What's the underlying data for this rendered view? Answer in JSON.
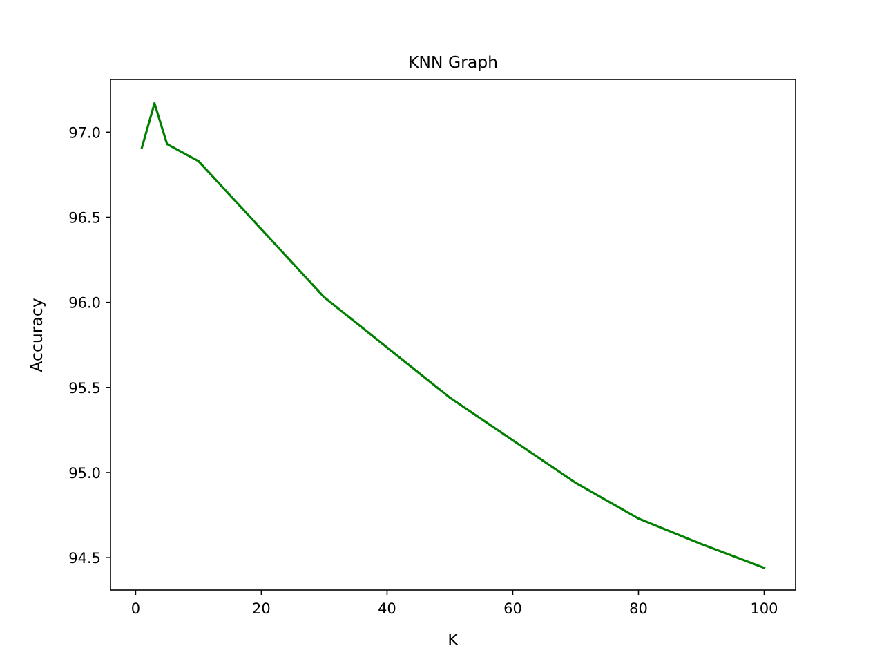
{
  "chart_data": {
    "type": "line",
    "title": "KNN Graph",
    "xlabel": "K",
    "ylabel": "Accuracy",
    "xlim": [
      -4,
      105
    ],
    "ylim": [
      94.31,
      97.31
    ],
    "grid": false,
    "legend": "none",
    "x_ticks": [
      0,
      20,
      40,
      60,
      80,
      100
    ],
    "x_tick_labels": [
      "0",
      "20",
      "40",
      "60",
      "80",
      "100"
    ],
    "y_ticks": [
      94.5,
      95.0,
      95.5,
      96.0,
      96.5,
      97.0
    ],
    "y_tick_labels": [
      "94.5",
      "95.0",
      "95.5",
      "96.0",
      "96.5",
      "97.0"
    ],
    "series": [
      {
        "color": "#008000",
        "x": [
          1,
          3,
          5,
          10,
          30,
          50,
          70,
          80,
          90,
          100
        ],
        "y": [
          96.91,
          97.17,
          96.93,
          96.83,
          96.03,
          95.44,
          94.94,
          94.73,
          94.58,
          94.44
        ]
      }
    ]
  }
}
